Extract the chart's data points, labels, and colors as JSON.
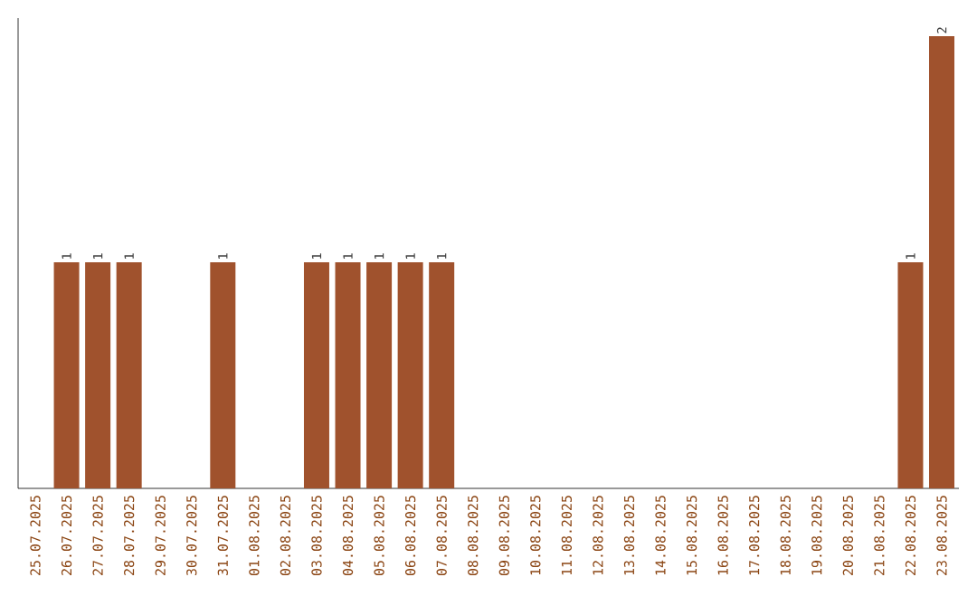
{
  "chart_data": {
    "type": "bar",
    "categories": [
      "25.07.2025",
      "26.07.2025",
      "27.07.2025",
      "28.07.2025",
      "29.07.2025",
      "30.07.2025",
      "31.07.2025",
      "01.08.2025",
      "02.08.2025",
      "03.08.2025",
      "04.08.2025",
      "05.08.2025",
      "06.08.2025",
      "07.08.2025",
      "08.08.2025",
      "09.08.2025",
      "10.08.2025",
      "11.08.2025",
      "12.08.2025",
      "13.08.2025",
      "14.08.2025",
      "15.08.2025",
      "16.08.2025",
      "17.08.2025",
      "18.08.2025",
      "19.08.2025",
      "20.08.2025",
      "21.08.2025",
      "22.08.2025",
      "23.08.2025"
    ],
    "values": [
      0,
      1,
      1,
      1,
      0,
      0,
      1,
      0,
      0,
      1,
      1,
      1,
      1,
      1,
      0,
      0,
      0,
      0,
      0,
      0,
      0,
      0,
      0,
      0,
      0,
      0,
      0,
      0,
      1,
      2
    ],
    "value_labels": [
      null,
      "1",
      "1",
      "1",
      null,
      null,
      "1",
      null,
      null,
      "1",
      "1",
      "1",
      "1",
      "1",
      null,
      null,
      null,
      null,
      null,
      null,
      null,
      null,
      null,
      null,
      null,
      null,
      null,
      null,
      "1",
      "2"
    ],
    "color": "#a0522d",
    "tick_labels": "x"
  }
}
